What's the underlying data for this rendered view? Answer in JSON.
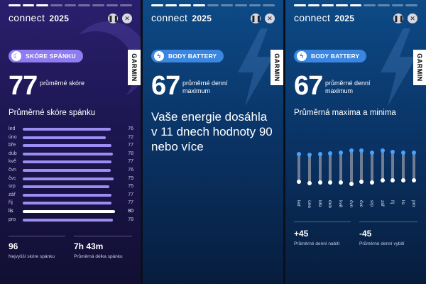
{
  "brand": {
    "name": "connect",
    "year": "2025"
  },
  "controls": {
    "pause_glyph": "❚❚",
    "close_glyph": "✕"
  },
  "garmin": "GARMIN",
  "panels": {
    "sleep": {
      "badge": "SKÓRE SPÁNKU",
      "badge_icon": "moon-icon",
      "value": "77",
      "value_label": "průměrné skóre",
      "subtitle": "Průměrné skóre spánku",
      "accent": "#9d8cf2",
      "highlight_month": "lis",
      "max_value": 80,
      "months": [
        {
          "m": "led",
          "v": 76
        },
        {
          "m": "úno",
          "v": 72
        },
        {
          "m": "bře",
          "v": 77
        },
        {
          "m": "dub",
          "v": 78
        },
        {
          "m": "kvě",
          "v": 77
        },
        {
          "m": "čvn",
          "v": 76
        },
        {
          "m": "čvc",
          "v": 79
        },
        {
          "m": "srp",
          "v": 75
        },
        {
          "m": "zář",
          "v": 77
        },
        {
          "m": "říj",
          "v": 77
        },
        {
          "m": "lis",
          "v": 80
        },
        {
          "m": "pro",
          "v": 78
        }
      ],
      "stats": [
        {
          "value": "96",
          "label": "Nejvyšší skóre spánku"
        },
        {
          "value": "7h 43m",
          "label": "Průměrná délka spánku"
        }
      ]
    },
    "battery1": {
      "badge": "BODY BATTERY",
      "badge_icon": "lightning-icon",
      "value": "67",
      "value_label": "průměrné denní maximum",
      "message": "Vaše energie dosáhla v 11 dnech hodnoty 90 nebo více"
    },
    "battery2": {
      "badge": "BODY BATTERY",
      "badge_icon": "lightning-icon",
      "value": "67",
      "value_label": "průměrné denní maximum",
      "subtitle": "Průměrná maxima a minima",
      "chart_data": {
        "type": "range",
        "categories": [
          "led",
          "úno",
          "bře",
          "dub",
          "kvě",
          "čvn",
          "čvc",
          "srp",
          "zář",
          "říj",
          "lis",
          "pro"
        ],
        "series": [
          {
            "name": "max",
            "values": [
              66,
              64,
              66,
              67,
              68,
              71,
              71,
              68,
              71,
              69,
              68,
              68
            ]
          },
          {
            "name": "min",
            "values": [
              22,
              20,
              21,
              21,
              21,
              19,
              22,
              21,
              24,
              24,
              24,
              24
            ]
          }
        ],
        "ylim": [
          0,
          80
        ]
      },
      "stats": [
        {
          "value": "+45",
          "label": "Průměrné denní nabití"
        },
        {
          "value": "-45",
          "label": "Průměrné denní vybití"
        }
      ]
    }
  }
}
